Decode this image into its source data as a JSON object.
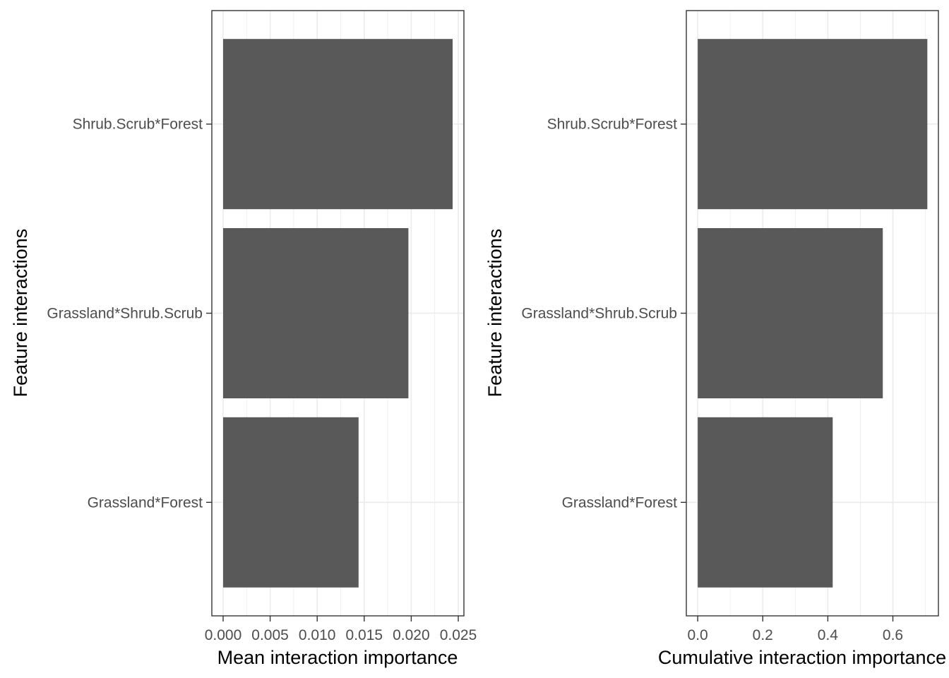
{
  "chart_data": [
    {
      "type": "bar",
      "orientation": "horizontal",
      "categories": [
        "Shrub.Scrub*Forest",
        "Grassland*Shrub.Scrub",
        "Grassland*Forest"
      ],
      "values": [
        0.0244,
        0.0197,
        0.0144
      ],
      "xlabel": "Mean interaction importance",
      "ylabel": "Feature interactions",
      "xlim": [
        -0.0012,
        0.0256
      ],
      "xticks": [
        0,
        0.005,
        0.01,
        0.015,
        0.02,
        0.025
      ],
      "xtick_labels": [
        "0.000",
        "0.005",
        "0.010",
        "0.015",
        "0.020",
        "0.025"
      ],
      "bar_color": "#595959",
      "grid": true
    },
    {
      "type": "bar",
      "orientation": "horizontal",
      "categories": [
        "Shrub.Scrub*Forest",
        "Grassland*Shrub.Scrub",
        "Grassland*Forest"
      ],
      "values": [
        0.706,
        0.569,
        0.415
      ],
      "xlabel": "Cumulative interaction importance",
      "ylabel": "Feature interactions",
      "xlim": [
        -0.035,
        0.74
      ],
      "xticks": [
        0,
        0.2,
        0.4,
        0.6
      ],
      "xtick_labels": [
        "0.0",
        "0.2",
        "0.4",
        "0.6"
      ],
      "bar_color": "#595959",
      "grid": true
    }
  ]
}
